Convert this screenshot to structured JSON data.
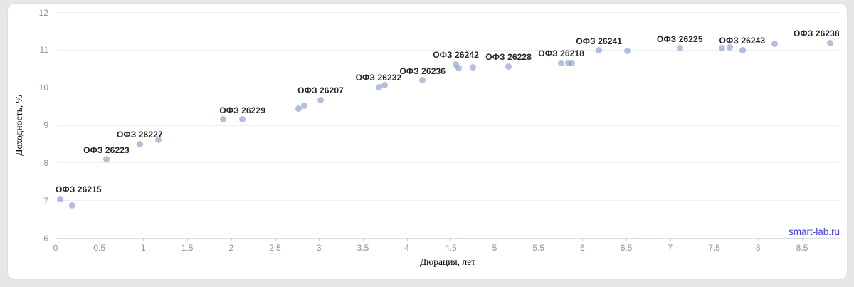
{
  "page": {
    "background": "#e7e7e7",
    "card_background": "#ffffff"
  },
  "watermark": {
    "text": "smart-lab.ru",
    "color": "#4340d9"
  },
  "chart_data": {
    "type": "scatter",
    "title": "",
    "xlabel": "Дюрация, лет",
    "ylabel": "Доходность, %",
    "xlim": [
      0,
      8.93
    ],
    "ylim": [
      6,
      12
    ],
    "grid": "horizontal-only",
    "legend_position": "none",
    "x_ticks": [
      {
        "v": 0,
        "label": "0"
      },
      {
        "v": 0.5,
        "label": "0.5"
      },
      {
        "v": 1,
        "label": "1"
      },
      {
        "v": 1.5,
        "label": "1.5"
      },
      {
        "v": 2,
        "label": "2"
      },
      {
        "v": 2.5,
        "label": "2.5"
      },
      {
        "v": 3,
        "label": "3"
      },
      {
        "v": 3.5,
        "label": "3.5"
      },
      {
        "v": 4,
        "label": "4"
      },
      {
        "v": 4.5,
        "label": "4.5"
      },
      {
        "v": 5,
        "label": "5"
      },
      {
        "v": 5.5,
        "label": "5.5"
      },
      {
        "v": 6,
        "label": "6"
      },
      {
        "v": 6.5,
        "label": "6.5"
      },
      {
        "v": 7,
        "label": "7"
      },
      {
        "v": 7.5,
        "label": "7.5"
      },
      {
        "v": 8,
        "label": "8"
      },
      {
        "v": 8.5,
        "label": "8.5"
      }
    ],
    "y_ticks": [
      {
        "v": 6,
        "label": "6"
      },
      {
        "v": 7,
        "label": "7"
      },
      {
        "v": 8,
        "label": "8"
      },
      {
        "v": 9,
        "label": "9"
      },
      {
        "v": 10,
        "label": "10"
      },
      {
        "v": 11,
        "label": "11"
      },
      {
        "v": 12,
        "label": "12"
      }
    ],
    "colors": {
      "marker": "#7f96c4",
      "marker_opacity": 0.6,
      "grid": "#edeff4",
      "axis_line": "#d9dfe9",
      "tick_mark": "#c8d3e3",
      "tick_label": "#97918a",
      "axis_title": "#87817b",
      "point_label": "#262626"
    },
    "points": [
      {
        "x": 0.05,
        "y": 7.05,
        "label": "ОФЗ 26215"
      },
      {
        "x": 0.19,
        "y": 6.87
      },
      {
        "x": 0.58,
        "y": 8.1,
        "label": "ОФЗ 26223"
      },
      {
        "x": 0.96,
        "y": 8.5,
        "label": "ОФЗ 26227"
      },
      {
        "x": 1.17,
        "y": 8.61
      },
      {
        "x": 1.91,
        "y": 9.16
      },
      {
        "x": 2.13,
        "y": 9.16,
        "label": "ОФЗ 26229"
      },
      {
        "x": 2.77,
        "y": 9.44
      },
      {
        "x": 2.83,
        "y": 9.52
      },
      {
        "x": 3.02,
        "y": 9.68,
        "label": "ОФЗ 26207"
      },
      {
        "x": 3.68,
        "y": 10.02,
        "label": "ОФЗ 26232"
      },
      {
        "x": 3.75,
        "y": 10.07
      },
      {
        "x": 4.18,
        "y": 10.2,
        "label": "ОФЗ 26236"
      },
      {
        "x": 4.56,
        "y": 10.62,
        "label": "ОФЗ 26242"
      },
      {
        "x": 4.59,
        "y": 10.52
      },
      {
        "x": 4.75,
        "y": 10.54
      },
      {
        "x": 5.16,
        "y": 10.57,
        "label": "ОФЗ 26228"
      },
      {
        "x": 5.76,
        "y": 10.66,
        "label": "ОФЗ 26218"
      },
      {
        "x": 5.84,
        "y": 10.66
      },
      {
        "x": 5.88,
        "y": 10.66
      },
      {
        "x": 6.19,
        "y": 10.99,
        "label": "ОФЗ 26241"
      },
      {
        "x": 6.51,
        "y": 10.97
      },
      {
        "x": 7.11,
        "y": 11.05,
        "label": "ОФЗ 26225"
      },
      {
        "x": 7.59,
        "y": 11.05
      },
      {
        "x": 7.68,
        "y": 11.08
      },
      {
        "x": 7.82,
        "y": 11.0,
        "label": "ОФЗ 26243"
      },
      {
        "x": 8.19,
        "y": 11.17
      },
      {
        "x": 8.82,
        "y": 11.19,
        "label": "ОФЗ 26238"
      }
    ]
  }
}
